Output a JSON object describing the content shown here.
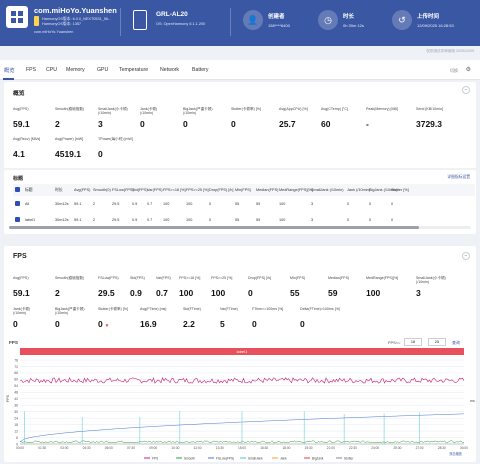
{
  "header": {
    "app_name": "com.miHoYo.Yuanshen",
    "app_sub1": "HarmonyOS版本: 6.0.0_NEXT0531_56...",
    "app_sub2": "HarmonyOS版本: 1357",
    "app_sub3": "com.miHoYo.Yuanshen",
    "device_name": "GRL-AL20",
    "device_os": "OS: OpenHarmony 6.1.1.200",
    "creator_label": "创建者",
    "creator_value": "158****6400",
    "duration_label": "时长",
    "duration_value": "0h 30m 12s",
    "upload_label": "上传时间",
    "upload_value": "12/09/2025 16:28:53"
  },
  "watermark_top": "仅供测试评审使用 2025/12/09",
  "tabs": [
    "概览",
    "FPS",
    "CPU",
    "Memory",
    "GPU",
    "Temperature",
    "Network",
    "Battery"
  ],
  "tabs_right": {
    "switch": "切换",
    "gear": "⚙"
  },
  "overview": {
    "title": "概览",
    "metrics": [
      {
        "label": "Avg(FPS)",
        "value": "59.1"
      },
      {
        "label": "Smooth(稳帧指数)",
        "value": "2"
      },
      {
        "label": "SmallJank(小卡顿)\n(/10min)",
        "value": "3"
      },
      {
        "label": "Jank(卡顿)\n(/10min)",
        "value": "0"
      },
      {
        "label": "BigJank(严重卡顿)\n(/10min)",
        "value": "0"
      },
      {
        "label": "Stutter(卡顿率) [%]",
        "value": "0"
      },
      {
        "label": "Avg(AppCPU) [%]",
        "value": "25.7"
      },
      {
        "label": "Avg(CTemp) [°C]",
        "value": "60"
      },
      {
        "label": "Peak(Memory) [MB]",
        "value": "-"
      },
      {
        "label": "Send [KB/10min]",
        "value": "3729.3"
      }
    ],
    "metrics2": [
      {
        "label": "Avg(Recv) [KB/s]",
        "value": "4.1"
      },
      {
        "label": "Avg(Power) [mW]",
        "value": "4519.1"
      },
      {
        "label": "TPower(每小时) [mW]",
        "value": "0"
      }
    ]
  },
  "table": {
    "title": "标题",
    "right_link": "详细指标设置",
    "headers": [
      "标题",
      "时长",
      "Avg(FPS)",
      "Smooth(0)",
      "FSLow(FPS)",
      "Std(FPS)",
      "Var(FPS)",
      "FPS>=18 [%]",
      "FPS>=25 [%]",
      "Drop(FPS) [/h]",
      "Min(FPS)",
      "Median(FPS)",
      "MedRange(FPS)[%]",
      "SmallJank (/10min)",
      "Jank (/10min)",
      "BigJank (/10min)",
      "Stutter [%]"
    ],
    "rows": [
      [
        "All",
        "30m12s",
        "59.1",
        "2",
        "29.5",
        "0.9",
        "0.7",
        "100",
        "100",
        "0",
        "55",
        "59",
        "100",
        "3",
        "0",
        "0",
        "0"
      ],
      [
        "label1",
        "30m12s",
        "59.1",
        "2",
        "29.5",
        "0.9",
        "0.7",
        "100",
        "100",
        "0",
        "55",
        "59",
        "100",
        "3",
        "0",
        "0",
        "0"
      ]
    ]
  },
  "fps": {
    "title": "FPS",
    "row1": [
      {
        "label": "Avg(FPS)",
        "value": "59.1"
      },
      {
        "label": "Smooth(稳帧指数)",
        "value": "2"
      },
      {
        "label": "FSLow(FPS)",
        "value": "29.5"
      },
      {
        "label": "Std(FPS)",
        "value": "0.9"
      },
      {
        "label": "Var(FPS)",
        "value": "0.7"
      },
      {
        "label": "FPS>=18 [%]",
        "value": "100"
      },
      {
        "label": "FPS>=25 [%]",
        "value": "100"
      },
      {
        "label": "Drop(FPS) [/h]",
        "value": "0"
      },
      {
        "label": "Min(FPS)",
        "value": "55"
      },
      {
        "label": "Median(FPS)",
        "value": "59"
      },
      {
        "label": "MedRange(FPS)[%]",
        "value": "100"
      },
      {
        "label": "SmallJank(小卡顿)\n(/10min)",
        "value": "3"
      }
    ],
    "row2": [
      {
        "label": "Jank(卡顿)\n(/10min)",
        "value": "0"
      },
      {
        "label": "BigJank(严重卡顿)\n(/10min)",
        "value": "0"
      },
      {
        "label": "Stutter(卡顿率) [%]",
        "value": "0",
        "arrow": "▼"
      },
      {
        "label": "Avg(FTime) [ms]",
        "value": "16.9"
      },
      {
        "label": "Std(FTime)",
        "value": "2.2"
      },
      {
        "label": "Var(FTime)",
        "value": "5"
      },
      {
        "label": "FTime>=100ms [%]",
        "value": "0"
      },
      {
        "label": "Delta(FTime)>100ms [/h]",
        "value": "0"
      }
    ]
  },
  "chart_data": {
    "type": "line",
    "title": "FPS",
    "banner_label": "label1",
    "threshold_label": "FPS<=",
    "threshold_value_1": "18",
    "threshold_value_2": "25",
    "threshold_button": "查询",
    "y_ticks": [
      "78",
      "72",
      "66",
      "60",
      "54",
      "48",
      "42",
      "36",
      "30",
      "24",
      "18",
      "12",
      "6",
      "0"
    ],
    "ylim": [
      0,
      78
    ],
    "ylabel": "FPS",
    "ylabel_right": "ms",
    "x_ticks": [
      "00:00",
      "01:30",
      "03:00",
      "04:30",
      "06:00",
      "07:30",
      "09:00",
      "10:30",
      "12:00",
      "13:30",
      "15:00",
      "16:30",
      "18:00",
      "19:30",
      "21:00",
      "22:30",
      "24:00",
      "25:30",
      "27:00",
      "28:30",
      "30:00"
    ],
    "series": [
      {
        "name": "FPS",
        "color": "#c81e7a",
        "approx_level": 59
      },
      {
        "name": "Smooth",
        "color": "#2a9d3a",
        "approx_level": 2
      },
      {
        "name": "FSLow(FPS)",
        "color": "#4a76d6",
        "approx_level": 29.5
      },
      {
        "name": "SmallJank",
        "color": "#4fc3d8"
      },
      {
        "name": "Jank",
        "color": "#f0a030"
      },
      {
        "name": "BigJank",
        "color": "#e04040"
      },
      {
        "name": "Stutter",
        "color": "#8a8a8a"
      }
    ],
    "legend_position": "bottom",
    "zoom_label": "双击缩放"
  }
}
